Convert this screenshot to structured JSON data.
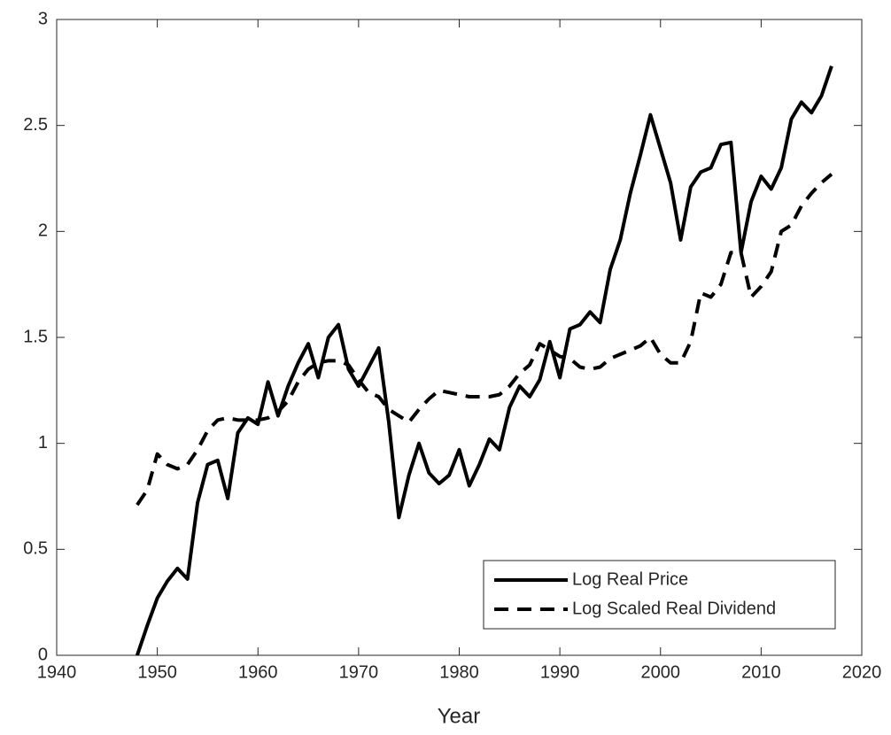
{
  "chart_data": {
    "type": "line",
    "xlabel": "Year",
    "x": [
      1948,
      1949,
      1950,
      1951,
      1952,
      1953,
      1954,
      1955,
      1956,
      1957,
      1958,
      1959,
      1960,
      1961,
      1962,
      1963,
      1964,
      1965,
      1966,
      1967,
      1968,
      1969,
      1970,
      1971,
      1972,
      1973,
      1974,
      1975,
      1976,
      1977,
      1978,
      1979,
      1980,
      1981,
      1982,
      1983,
      1984,
      1985,
      1986,
      1987,
      1988,
      1989,
      1990,
      1991,
      1992,
      1993,
      1994,
      1995,
      1996,
      1997,
      1998,
      1999,
      2000,
      2001,
      2002,
      2003,
      2004,
      2005,
      2006,
      2007,
      2008,
      2009,
      2010,
      2011,
      2012,
      2013,
      2014,
      2015,
      2016,
      2017
    ],
    "series": [
      {
        "name": "Log Real Price",
        "color": "#000000",
        "style": "solid",
        "values": [
          0.0,
          0.14,
          0.27,
          0.35,
          0.41,
          0.36,
          0.72,
          0.9,
          0.92,
          0.74,
          1.05,
          1.12,
          1.09,
          1.29,
          1.13,
          1.27,
          1.38,
          1.47,
          1.31,
          1.5,
          1.56,
          1.35,
          1.27,
          1.36,
          1.45,
          1.1,
          0.65,
          0.85,
          1.0,
          0.86,
          0.81,
          0.85,
          0.97,
          0.8,
          0.9,
          1.02,
          0.97,
          1.17,
          1.27,
          1.22,
          1.3,
          1.48,
          1.31,
          1.54,
          1.56,
          1.62,
          1.57,
          1.82,
          1.96,
          2.18,
          2.36,
          2.55,
          2.39,
          2.23,
          1.96,
          2.21,
          2.28,
          2.3,
          2.41,
          2.42,
          1.9,
          2.14,
          2.26,
          2.2,
          2.3,
          2.53,
          2.61,
          2.56,
          2.64,
          2.78
        ]
      },
      {
        "name": "Log Scaled Real Dividend",
        "color": "#000000",
        "style": "dashed",
        "values": [
          0.71,
          0.78,
          0.95,
          0.9,
          0.88,
          0.9,
          0.97,
          1.06,
          1.11,
          1.12,
          1.11,
          1.11,
          1.11,
          1.12,
          1.15,
          1.2,
          1.29,
          1.35,
          1.38,
          1.39,
          1.39,
          1.37,
          1.3,
          1.24,
          1.22,
          1.16,
          1.13,
          1.1,
          1.16,
          1.21,
          1.25,
          1.24,
          1.23,
          1.22,
          1.22,
          1.22,
          1.23,
          1.27,
          1.33,
          1.37,
          1.47,
          1.44,
          1.41,
          1.4,
          1.36,
          1.35,
          1.36,
          1.4,
          1.42,
          1.44,
          1.46,
          1.5,
          1.42,
          1.38,
          1.38,
          1.48,
          1.71,
          1.69,
          1.75,
          1.9,
          1.9,
          1.69,
          1.74,
          1.81,
          2.0,
          2.03,
          2.12,
          2.18,
          2.23,
          2.27
        ]
      }
    ],
    "xlim": [
      1940,
      2020
    ],
    "xticks": [
      1940,
      1950,
      1960,
      1970,
      1980,
      1990,
      2000,
      2010,
      2020
    ],
    "ylim": [
      0,
      3
    ],
    "yticks": [
      0,
      0.5,
      1,
      1.5,
      2,
      2.5,
      3
    ],
    "grid": false,
    "legend": "lower right"
  }
}
